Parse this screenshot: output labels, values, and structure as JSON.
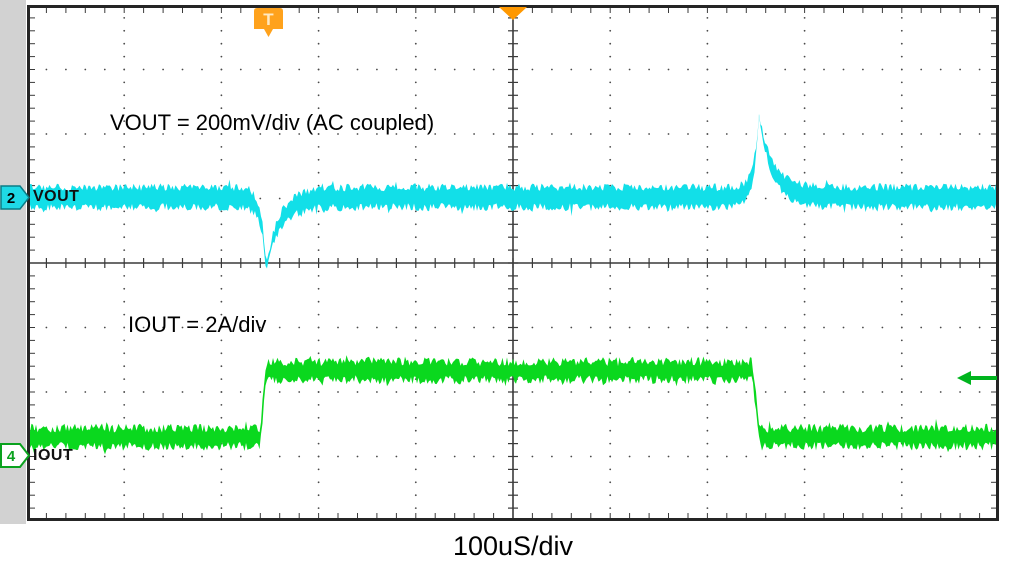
{
  "ui": {
    "background": "#ffffff",
    "left_strip_color": "#d2d2d2",
    "grid": {
      "dot_color": "#4a4a4a",
      "axis_color": "#3a3a3a",
      "border_color": "#252525"
    },
    "channel_badges": [
      {
        "id": "2",
        "fill": "#1fd9e6",
        "text_color": "#000000",
        "border": "#0b7c86"
      },
      {
        "id": "4",
        "fill": "#ffffff",
        "text_color": "#0aa21e",
        "border": "#0aa21e"
      }
    ],
    "trace_labels": {
      "vout": "VOUT",
      "iout": "IOUT"
    },
    "annotations": [
      {
        "text": "VOUT = 200mV/div (AC coupled)"
      },
      {
        "text": "IOUT = 2A/div"
      }
    ],
    "timebase_label": "100uS/div",
    "trigger_flag": {
      "letter": "T",
      "color": "#ffa21c",
      "letter_color": "#ffe9c2"
    },
    "trigger_position_marker": {
      "shape": "triangle-down",
      "color": "#ff9800"
    },
    "reference_arrow": {
      "shape": "arrow-left",
      "color": "#00b41e"
    }
  },
  "chart_data": {
    "type": "line",
    "instrument": "oscilloscope-load-transient-capture",
    "x_axis": {
      "label": "100uS/div",
      "scale_per_div": "100uS",
      "divisions": 10
    },
    "y_axis": {
      "divisions": 8
    },
    "grid": "dotted graticule, solid center crosshair with minor ticks",
    "trigger": {
      "marker_letter": "T",
      "time_div": 2.49,
      "position_div": 5.0
    },
    "right_reference_arrow_div": 5.78,
    "series": [
      {
        "name": "VOUT",
        "color": "#12dfe8",
        "scale_per_div": "200mV",
        "coupling": "AC",
        "baseline_div_from_top": 2.98,
        "noise_halfband_div": 0.155,
        "marker_div": 2.98,
        "events": [
          {
            "type": "undershoot",
            "time_div": 2.46,
            "amplitude_div": -1.1,
            "amplitude_approx": "-220mV"
          },
          {
            "type": "overshoot",
            "time_div": 7.53,
            "amplitude_div": 1.27,
            "amplitude_approx": "+255mV"
          }
        ]
      },
      {
        "name": "IOUT",
        "color": "#0ad81e",
        "scale_per_div": "2A",
        "low_level_div_from_top": 6.7,
        "high_level_div_from_top": 5.67,
        "noise_halfband_div": 0.14,
        "marker_div": 6.98,
        "step_up_time_div": 2.43,
        "step_down_time_div": 7.5,
        "step_amplitude": "2A"
      }
    ]
  }
}
